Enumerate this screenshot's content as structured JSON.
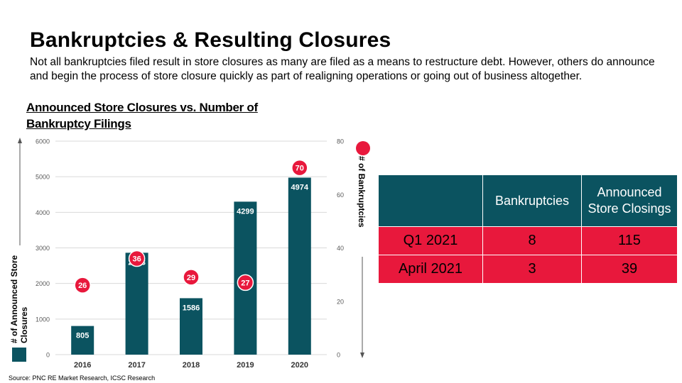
{
  "slide": {
    "title": "Bankruptcies & Resulting Closures",
    "subtitle": "Not all bankruptcies filed result in store closures as many are filed as a means to restructure debt.  However, others do announce and begin the process of store closure quickly as part of realigning operations or going out of business altogether.",
    "source": "Source: PNC RE Market Research,  ICSC Research"
  },
  "chart_data": {
    "type": "bar",
    "title": "Announced Store Closures vs. Number of Bankruptcy Filings",
    "categories": [
      "2016",
      "2017",
      "2018",
      "2019",
      "2020"
    ],
    "series": [
      {
        "name": "# of Announced Store Closures",
        "type": "bar",
        "axis": "left",
        "values": [
          805,
          2863,
          1586,
          4299,
          4974
        ],
        "color": "#0b5360"
      },
      {
        "name": "# of Bankruptcies",
        "type": "scatter",
        "axis": "right",
        "values": [
          26,
          36,
          29,
          27,
          70
        ],
        "color": "#e8183c"
      }
    ],
    "ylabel": "# of Announced Store Closures",
    "y2label": "# of Bankruptcies",
    "ylim": [
      0,
      6000
    ],
    "y2lim": [
      0,
      80
    ],
    "yticks": [
      "0",
      "1000",
      "2000",
      "3000",
      "4000",
      "5000",
      "6000"
    ],
    "y2ticks": [
      "0",
      "20",
      "40",
      "60",
      "80"
    ],
    "grid": true
  },
  "table": {
    "headers": [
      "",
      "Bankruptcies",
      "Announced Store Closings"
    ],
    "rows": [
      {
        "label": "Q1 2021",
        "bankruptcies": "8",
        "closings": "115"
      },
      {
        "label": "April 2021",
        "bankruptcies": "3",
        "closings": "39"
      }
    ]
  },
  "colors": {
    "bar": "#0b5360",
    "marker": "#e8183c",
    "header_bg": "#0b5360",
    "row_bg": "#e8183c"
  }
}
